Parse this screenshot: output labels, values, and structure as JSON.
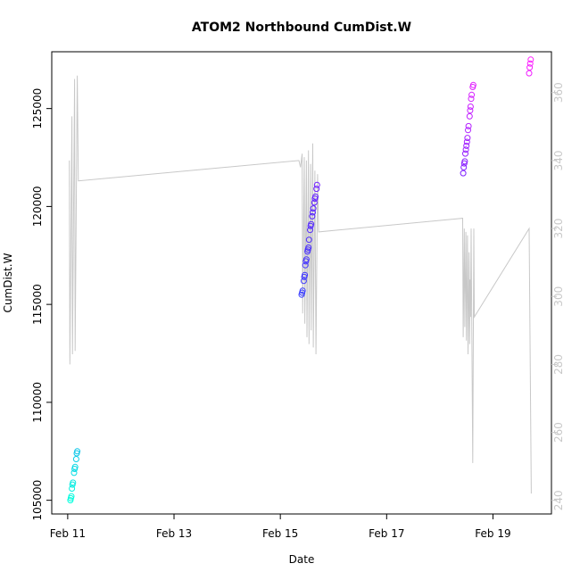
{
  "chart_data": {
    "type": "scatter",
    "title": "ATOM2 Northbound CumDist.W",
    "xlabel": "Date",
    "ylabel": "CumDist.W",
    "x_ticks": [
      "Feb 11",
      "Feb 13",
      "Feb 15",
      "Feb 17",
      "Feb 19"
    ],
    "x_tick_days": [
      11,
      13,
      15,
      17,
      19
    ],
    "xlim": [
      10.7,
      20.1
    ],
    "y_ticks": [
      105000,
      110000,
      115000,
      120000,
      125000
    ],
    "ylim": [
      104300,
      127900
    ],
    "y2_ticks": [
      240,
      260,
      280,
      300,
      320,
      340,
      360
    ],
    "y2lim": [
      236,
      372
    ],
    "grid": false,
    "colors": {
      "series_line": "#c8c8c8",
      "right_axis": "#c8c8c8",
      "points_gradient": [
        "#00ffdd",
        "#2050ff",
        "#5a20ff",
        "#ff20ff"
      ]
    },
    "series": [
      {
        "values": [
          [
            11.05,
            105000
          ],
          [
            11.06,
            105100
          ],
          [
            11.07,
            105200
          ],
          [
            11.08,
            105600
          ],
          [
            11.09,
            105800
          ],
          [
            11.1,
            105900
          ],
          [
            11.12,
            106400
          ],
          [
            11.13,
            106600
          ],
          [
            11.14,
            106700
          ],
          [
            11.16,
            107100
          ],
          [
            11.17,
            107400
          ],
          [
            11.18,
            107500
          ],
          [
            15.4,
            115500
          ],
          [
            15.41,
            115600
          ],
          [
            15.42,
            115700
          ],
          [
            15.44,
            116200
          ],
          [
            15.45,
            116400
          ],
          [
            15.46,
            116500
          ],
          [
            15.47,
            117000
          ],
          [
            15.48,
            117200
          ],
          [
            15.49,
            117300
          ],
          [
            15.51,
            117700
          ],
          [
            15.52,
            117800
          ],
          [
            15.53,
            117900
          ],
          [
            15.54,
            118300
          ],
          [
            15.56,
            118800
          ],
          [
            15.57,
            119000
          ],
          [
            15.58,
            119100
          ],
          [
            15.6,
            119500
          ],
          [
            15.61,
            119700
          ],
          [
            15.62,
            119900
          ],
          [
            15.64,
            120200
          ],
          [
            15.65,
            120400
          ],
          [
            15.66,
            120500
          ],
          [
            15.68,
            120900
          ],
          [
            15.69,
            121100
          ],
          [
            18.44,
            121700
          ],
          [
            18.45,
            122000
          ],
          [
            18.46,
            122200
          ],
          [
            18.47,
            122300
          ],
          [
            18.48,
            122700
          ],
          [
            18.49,
            122900
          ],
          [
            18.5,
            123100
          ],
          [
            18.51,
            123300
          ],
          [
            18.52,
            123500
          ],
          [
            18.53,
            123900
          ],
          [
            18.54,
            124100
          ],
          [
            18.56,
            124600
          ],
          [
            18.57,
            124900
          ],
          [
            18.58,
            125100
          ],
          [
            18.59,
            125500
          ],
          [
            18.6,
            125700
          ],
          [
            18.62,
            126100
          ],
          [
            18.63,
            126200
          ],
          [
            19.68,
            126800
          ],
          [
            19.69,
            127100
          ],
          [
            19.7,
            127300
          ],
          [
            19.71,
            127500
          ]
        ]
      },
      {
        "axis": "right",
        "values": [
          [
            11.03,
            340
          ],
          [
            11.04,
            280
          ],
          [
            11.08,
            353
          ],
          [
            11.09,
            283
          ],
          [
            11.13,
            364
          ],
          [
            11.14,
            284
          ],
          [
            11.18,
            365
          ],
          [
            11.2,
            334
          ],
          [
            15.35,
            340
          ],
          [
            15.38,
            338
          ],
          [
            15.41,
            342
          ],
          [
            15.42,
            295
          ],
          [
            15.45,
            341
          ],
          [
            15.46,
            292
          ],
          [
            15.49,
            340
          ],
          [
            15.5,
            288
          ],
          [
            15.53,
            343
          ],
          [
            15.54,
            286
          ],
          [
            15.57,
            339
          ],
          [
            15.58,
            290
          ],
          [
            15.61,
            345
          ],
          [
            15.62,
            285
          ],
          [
            15.65,
            337
          ],
          [
            15.67,
            283
          ],
          [
            15.7,
            336
          ],
          [
            15.72,
            319
          ],
          [
            18.43,
            323
          ],
          [
            18.44,
            288
          ],
          [
            18.46,
            320
          ],
          [
            18.47,
            291
          ],
          [
            18.49,
            319
          ],
          [
            18.5,
            287
          ],
          [
            18.52,
            318
          ],
          [
            18.53,
            283
          ],
          [
            18.55,
            313
          ],
          [
            18.56,
            286
          ],
          [
            18.57,
            305
          ],
          [
            18.58,
            294
          ],
          [
            18.59,
            320
          ],
          [
            18.62,
            251
          ],
          [
            18.64,
            320
          ],
          [
            18.65,
            294
          ],
          [
            19.68,
            320
          ],
          [
            19.72,
            242
          ]
        ]
      }
    ]
  }
}
